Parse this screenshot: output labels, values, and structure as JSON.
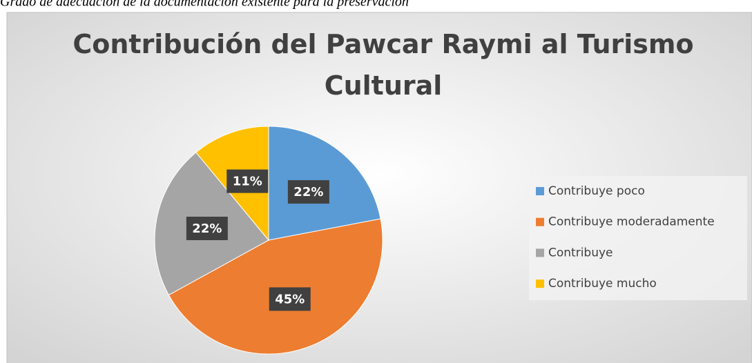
{
  "caption": "Grado de adecuación de la documentación existente para la preservación",
  "chart_data": {
    "type": "pie",
    "title": "Contribución del Pawcar Raymi al Turismo Cultural",
    "categories": [
      "Contribuye poco",
      "Contribuye moderadamente",
      "Contribuye",
      "Contribuye mucho"
    ],
    "values": [
      22,
      45,
      22,
      11
    ],
    "value_labels": [
      "22%",
      "45%",
      "22%",
      "11%"
    ],
    "colors": [
      "#5b9bd5",
      "#ed7d31",
      "#a5a5a5",
      "#ffc000"
    ],
    "legend": "right"
  }
}
